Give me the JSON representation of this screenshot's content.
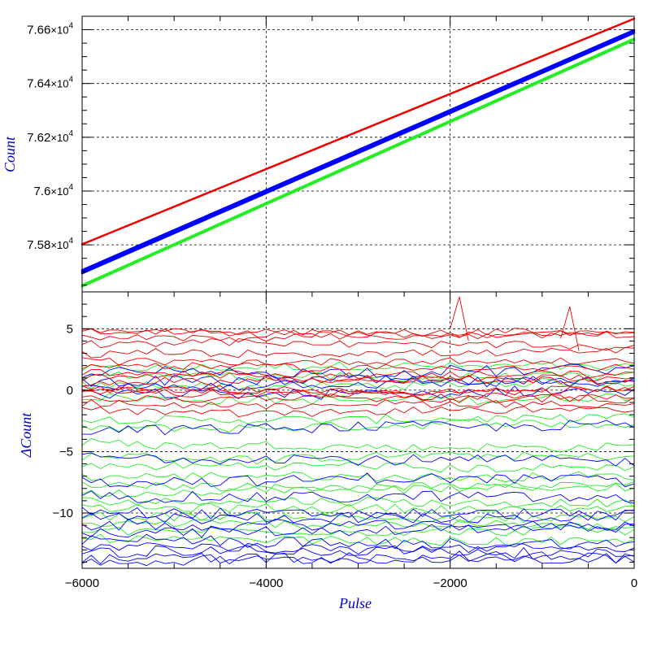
{
  "chart_data": [
    {
      "panel": "top",
      "type": "line",
      "xlabel": "",
      "ylabel": "Count",
      "xlim": [
        -6000,
        0
      ],
      "ylim": [
        75625,
        76650
      ],
      "grid": true,
      "ytick_values": [
        75800,
        76000,
        76200,
        76400,
        76600
      ],
      "ytick_mantissas": [
        "7.58",
        "7.6",
        "7.62",
        "7.64",
        "7.66"
      ],
      "ytick_times": "×10",
      "ytick_exponent": "4",
      "colors": {
        "red": "#ee0000",
        "blue": "#0000ff",
        "green": "#22ee22"
      },
      "series": [
        {
          "color": "#ee0000",
          "x": [
            -6000,
            0
          ],
          "y": [
            75802,
            76641
          ]
        },
        {
          "color": "#0000ff",
          "x": [
            -6000,
            0
          ],
          "y": [
            75706,
            76599
          ]
        },
        {
          "color": "#0000ff",
          "x": [
            -6000,
            0
          ],
          "y": [
            75700,
            76593
          ]
        },
        {
          "color": "#0000ff",
          "x": [
            -6000,
            0
          ],
          "y": [
            75694,
            76588
          ]
        },
        {
          "color": "#22ee22",
          "x": [
            -6000,
            0
          ],
          "y": [
            75650,
            76567
          ]
        },
        {
          "color": "#22ee22",
          "x": [
            -6000,
            0
          ],
          "y": [
            75645,
            76562
          ]
        }
      ]
    },
    {
      "panel": "bottom",
      "type": "line",
      "xlabel": "Pulse",
      "ylabel": "ΔCount",
      "xlim": [
        -6000,
        0
      ],
      "ylim": [
        -14.5,
        8
      ],
      "grid": true,
      "xticks": [
        -6000,
        -4000,
        -2000,
        0
      ],
      "xtick_labels": [
        "−6000",
        "−4000",
        "−2000",
        "0"
      ],
      "yticks": [
        5,
        0,
        -5,
        -10
      ],
      "ytick_labels": [
        "5",
        "0",
        "−5",
        "−10"
      ],
      "n_points": 61,
      "groups": [
        {
          "color": "#ee0000",
          "offsets": [
            5.0,
            4.8,
            4.3,
            3.8,
            3.0,
            2.4,
            1.9,
            1.5,
            1.0,
            0.5,
            0.1,
            0.0,
            -0.3,
            -0.7,
            -1.1,
            -1.6
          ],
          "noise": 0.3
        },
        {
          "color": "#22ee22",
          "offsets": [
            1.7,
            1.2,
            0.4,
            -0.5,
            -2.3,
            -3.2,
            -4.3,
            -5.4,
            -6.2,
            -7.1,
            -7.8,
            -8.4,
            -9.0,
            -9.7,
            -10.3,
            -10.9,
            -11.5,
            -12.0
          ],
          "noise": 0.35
        },
        {
          "color": "#0000ff",
          "offsets": [
            1.4,
            0.7,
            0.0,
            -0.4,
            -3.3,
            -5.4,
            -7.4,
            -8.6,
            -9.8,
            -10.4,
            -11.0,
            -11.6,
            -12.2,
            -12.8,
            -13.2,
            -13.6,
            -14.0
          ],
          "noise": 0.45
        }
      ],
      "spikes": [
        {
          "color": "#ee0000",
          "x": -1900,
          "y": 7.6
        },
        {
          "color": "#ee0000",
          "x": -700,
          "y": 6.8
        }
      ]
    }
  ]
}
